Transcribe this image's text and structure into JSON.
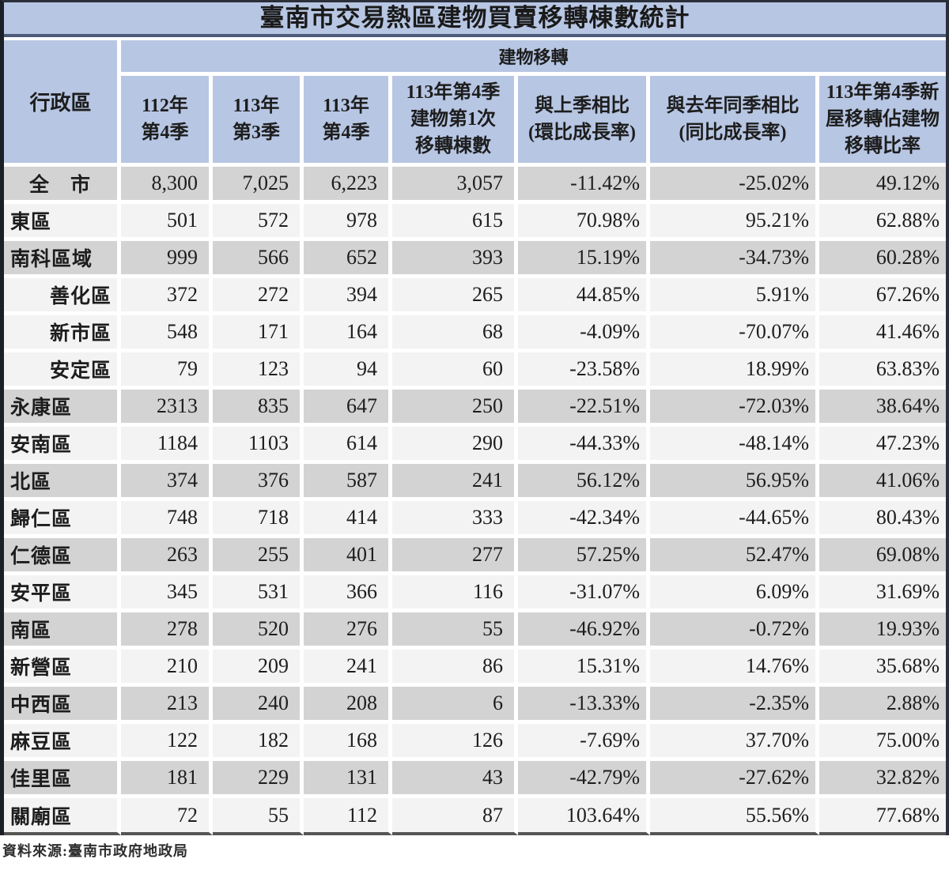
{
  "chart_data": {
    "type": "table",
    "title": "臺南市交易熱區建物買賣移轉棟數統計",
    "corner_header": "行政區",
    "group_header": "建物移轉",
    "columns": [
      "112年\n第4季",
      "113年\n第3季",
      "113年\n第4季",
      "113年第4季\n建物第1次\n移轉棟數",
      "與上季相比\n(環比成長率)",
      "與去年同季相比\n(同比成長率)",
      "113年第4季新\n屋移轉佔建物\n移轉比率"
    ],
    "rows": [
      {
        "district": "全　市",
        "indent": false,
        "center": true,
        "shade": "gray",
        "values": [
          "8,300",
          "7,025",
          "6,223",
          "3,057",
          "-11.42%",
          "-25.02%",
          "49.12%"
        ]
      },
      {
        "district": "東區",
        "indent": false,
        "center": false,
        "shade": "light",
        "values": [
          "501",
          "572",
          "978",
          "615",
          "70.98%",
          "95.21%",
          "62.88%"
        ]
      },
      {
        "district": "南科區域",
        "indent": false,
        "center": false,
        "shade": "gray",
        "values": [
          "999",
          "566",
          "652",
          "393",
          "15.19%",
          "-34.73%",
          "60.28%"
        ]
      },
      {
        "district": "善化區",
        "indent": true,
        "center": false,
        "shade": "light",
        "values": [
          "372",
          "272",
          "394",
          "265",
          "44.85%",
          "5.91%",
          "67.26%"
        ]
      },
      {
        "district": "新市區",
        "indent": true,
        "center": false,
        "shade": "light",
        "values": [
          "548",
          "171",
          "164",
          "68",
          "-4.09%",
          "-70.07%",
          "41.46%"
        ]
      },
      {
        "district": "安定區",
        "indent": true,
        "center": false,
        "shade": "light",
        "values": [
          "79",
          "123",
          "94",
          "60",
          "-23.58%",
          "18.99%",
          "63.83%"
        ]
      },
      {
        "district": "永康區",
        "indent": false,
        "center": false,
        "shade": "gray",
        "values": [
          "2313",
          "835",
          "647",
          "250",
          "-22.51%",
          "-72.03%",
          "38.64%"
        ]
      },
      {
        "district": "安南區",
        "indent": false,
        "center": false,
        "shade": "light",
        "values": [
          "1184",
          "1103",
          "614",
          "290",
          "-44.33%",
          "-48.14%",
          "47.23%"
        ]
      },
      {
        "district": "北區",
        "indent": false,
        "center": false,
        "shade": "gray",
        "values": [
          "374",
          "376",
          "587",
          "241",
          "56.12%",
          "56.95%",
          "41.06%"
        ]
      },
      {
        "district": "歸仁區",
        "indent": false,
        "center": false,
        "shade": "light",
        "values": [
          "748",
          "718",
          "414",
          "333",
          "-42.34%",
          "-44.65%",
          "80.43%"
        ]
      },
      {
        "district": "仁德區",
        "indent": false,
        "center": false,
        "shade": "gray",
        "values": [
          "263",
          "255",
          "401",
          "277",
          "57.25%",
          "52.47%",
          "69.08%"
        ]
      },
      {
        "district": "安平區",
        "indent": false,
        "center": false,
        "shade": "light",
        "values": [
          "345",
          "531",
          "366",
          "116",
          "-31.07%",
          "6.09%",
          "31.69%"
        ]
      },
      {
        "district": "南區",
        "indent": false,
        "center": false,
        "shade": "gray",
        "values": [
          "278",
          "520",
          "276",
          "55",
          "-46.92%",
          "-0.72%",
          "19.93%"
        ]
      },
      {
        "district": "新營區",
        "indent": false,
        "center": false,
        "shade": "light",
        "values": [
          "210",
          "209",
          "241",
          "86",
          "15.31%",
          "14.76%",
          "35.68%"
        ]
      },
      {
        "district": "中西區",
        "indent": false,
        "center": false,
        "shade": "gray",
        "values": [
          "213",
          "240",
          "208",
          "6",
          "-13.33%",
          "-2.35%",
          "2.88%"
        ]
      },
      {
        "district": "麻豆區",
        "indent": false,
        "center": false,
        "shade": "light",
        "values": [
          "122",
          "182",
          "168",
          "126",
          "-7.69%",
          "37.70%",
          "75.00%"
        ]
      },
      {
        "district": "佳里區",
        "indent": false,
        "center": false,
        "shade": "gray",
        "values": [
          "181",
          "229",
          "131",
          "43",
          "-42.79%",
          "-27.62%",
          "32.82%"
        ]
      },
      {
        "district": "關廟區",
        "indent": false,
        "center": false,
        "shade": "light",
        "values": [
          "72",
          "55",
          "112",
          "87",
          "103.64%",
          "55.56%",
          "77.68%"
        ]
      }
    ]
  },
  "source": "資料來源:臺南市政府地政局",
  "colors": {
    "header_blue": "#b7c6e3",
    "row_gray": "#d3d3d3",
    "row_light": "#f3f3f3",
    "border_dark": "#2a2f3a",
    "title_rule": "#4d5b7a",
    "bottom_rule": "#555555",
    "text": "#1d1d1d"
  }
}
